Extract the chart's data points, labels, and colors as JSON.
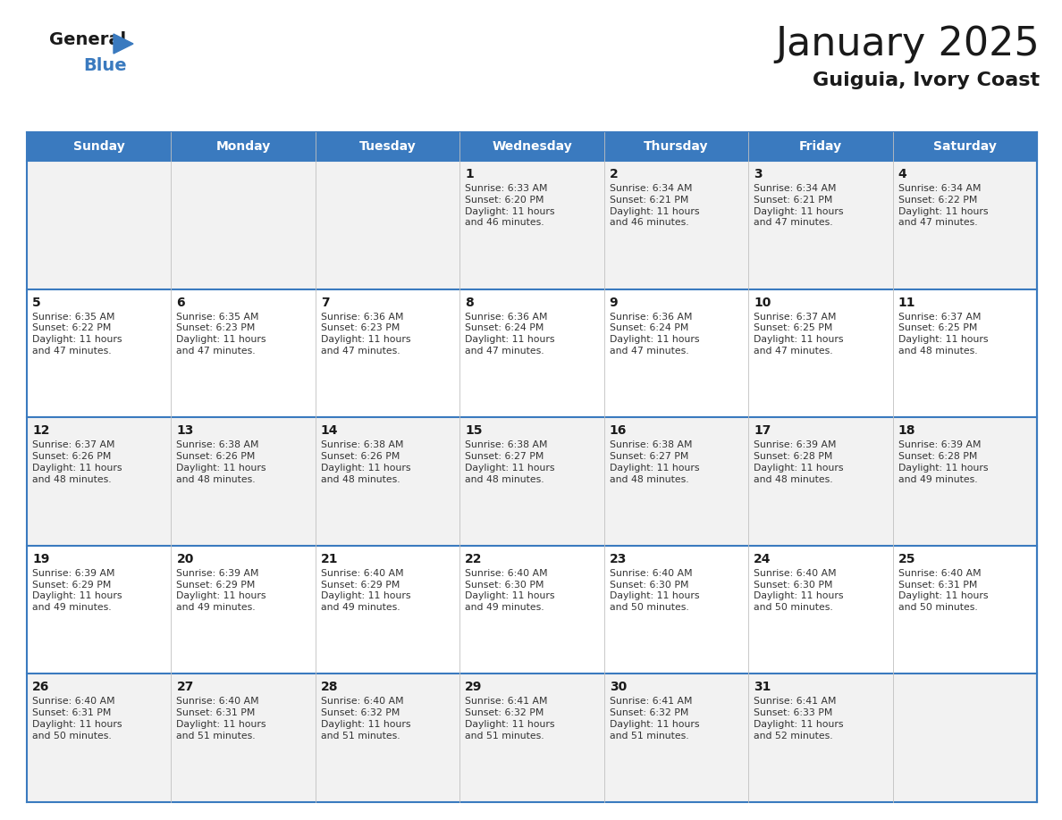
{
  "title": "January 2025",
  "subtitle": "Guiguia, Ivory Coast",
  "header_bg": "#3a7abf",
  "header_text_color": "#ffffff",
  "row_bg_even": "#f2f2f2",
  "row_bg_odd": "#ffffff",
  "border_color": "#3a7abf",
  "cell_line_color": "#c0c0c0",
  "text_color": "#333333",
  "day_num_color": "#1a1a1a",
  "days_of_week": [
    "Sunday",
    "Monday",
    "Tuesday",
    "Wednesday",
    "Thursday",
    "Friday",
    "Saturday"
  ],
  "calendar": [
    [
      {
        "day": "",
        "info": ""
      },
      {
        "day": "",
        "info": ""
      },
      {
        "day": "",
        "info": ""
      },
      {
        "day": "1",
        "info": "Sunrise: 6:33 AM\nSunset: 6:20 PM\nDaylight: 11 hours\nand 46 minutes."
      },
      {
        "day": "2",
        "info": "Sunrise: 6:34 AM\nSunset: 6:21 PM\nDaylight: 11 hours\nand 46 minutes."
      },
      {
        "day": "3",
        "info": "Sunrise: 6:34 AM\nSunset: 6:21 PM\nDaylight: 11 hours\nand 47 minutes."
      },
      {
        "day": "4",
        "info": "Sunrise: 6:34 AM\nSunset: 6:22 PM\nDaylight: 11 hours\nand 47 minutes."
      }
    ],
    [
      {
        "day": "5",
        "info": "Sunrise: 6:35 AM\nSunset: 6:22 PM\nDaylight: 11 hours\nand 47 minutes."
      },
      {
        "day": "6",
        "info": "Sunrise: 6:35 AM\nSunset: 6:23 PM\nDaylight: 11 hours\nand 47 minutes."
      },
      {
        "day": "7",
        "info": "Sunrise: 6:36 AM\nSunset: 6:23 PM\nDaylight: 11 hours\nand 47 minutes."
      },
      {
        "day": "8",
        "info": "Sunrise: 6:36 AM\nSunset: 6:24 PM\nDaylight: 11 hours\nand 47 minutes."
      },
      {
        "day": "9",
        "info": "Sunrise: 6:36 AM\nSunset: 6:24 PM\nDaylight: 11 hours\nand 47 minutes."
      },
      {
        "day": "10",
        "info": "Sunrise: 6:37 AM\nSunset: 6:25 PM\nDaylight: 11 hours\nand 47 minutes."
      },
      {
        "day": "11",
        "info": "Sunrise: 6:37 AM\nSunset: 6:25 PM\nDaylight: 11 hours\nand 48 minutes."
      }
    ],
    [
      {
        "day": "12",
        "info": "Sunrise: 6:37 AM\nSunset: 6:26 PM\nDaylight: 11 hours\nand 48 minutes."
      },
      {
        "day": "13",
        "info": "Sunrise: 6:38 AM\nSunset: 6:26 PM\nDaylight: 11 hours\nand 48 minutes."
      },
      {
        "day": "14",
        "info": "Sunrise: 6:38 AM\nSunset: 6:26 PM\nDaylight: 11 hours\nand 48 minutes."
      },
      {
        "day": "15",
        "info": "Sunrise: 6:38 AM\nSunset: 6:27 PM\nDaylight: 11 hours\nand 48 minutes."
      },
      {
        "day": "16",
        "info": "Sunrise: 6:38 AM\nSunset: 6:27 PM\nDaylight: 11 hours\nand 48 minutes."
      },
      {
        "day": "17",
        "info": "Sunrise: 6:39 AM\nSunset: 6:28 PM\nDaylight: 11 hours\nand 48 minutes."
      },
      {
        "day": "18",
        "info": "Sunrise: 6:39 AM\nSunset: 6:28 PM\nDaylight: 11 hours\nand 49 minutes."
      }
    ],
    [
      {
        "day": "19",
        "info": "Sunrise: 6:39 AM\nSunset: 6:29 PM\nDaylight: 11 hours\nand 49 minutes."
      },
      {
        "day": "20",
        "info": "Sunrise: 6:39 AM\nSunset: 6:29 PM\nDaylight: 11 hours\nand 49 minutes."
      },
      {
        "day": "21",
        "info": "Sunrise: 6:40 AM\nSunset: 6:29 PM\nDaylight: 11 hours\nand 49 minutes."
      },
      {
        "day": "22",
        "info": "Sunrise: 6:40 AM\nSunset: 6:30 PM\nDaylight: 11 hours\nand 49 minutes."
      },
      {
        "day": "23",
        "info": "Sunrise: 6:40 AM\nSunset: 6:30 PM\nDaylight: 11 hours\nand 50 minutes."
      },
      {
        "day": "24",
        "info": "Sunrise: 6:40 AM\nSunset: 6:30 PM\nDaylight: 11 hours\nand 50 minutes."
      },
      {
        "day": "25",
        "info": "Sunrise: 6:40 AM\nSunset: 6:31 PM\nDaylight: 11 hours\nand 50 minutes."
      }
    ],
    [
      {
        "day": "26",
        "info": "Sunrise: 6:40 AM\nSunset: 6:31 PM\nDaylight: 11 hours\nand 50 minutes."
      },
      {
        "day": "27",
        "info": "Sunrise: 6:40 AM\nSunset: 6:31 PM\nDaylight: 11 hours\nand 51 minutes."
      },
      {
        "day": "28",
        "info": "Sunrise: 6:40 AM\nSunset: 6:32 PM\nDaylight: 11 hours\nand 51 minutes."
      },
      {
        "day": "29",
        "info": "Sunrise: 6:41 AM\nSunset: 6:32 PM\nDaylight: 11 hours\nand 51 minutes."
      },
      {
        "day": "30",
        "info": "Sunrise: 6:41 AM\nSunset: 6:32 PM\nDaylight: 11 hours\nand 51 minutes."
      },
      {
        "day": "31",
        "info": "Sunrise: 6:41 AM\nSunset: 6:33 PM\nDaylight: 11 hours\nand 52 minutes."
      },
      {
        "day": "",
        "info": ""
      }
    ]
  ]
}
